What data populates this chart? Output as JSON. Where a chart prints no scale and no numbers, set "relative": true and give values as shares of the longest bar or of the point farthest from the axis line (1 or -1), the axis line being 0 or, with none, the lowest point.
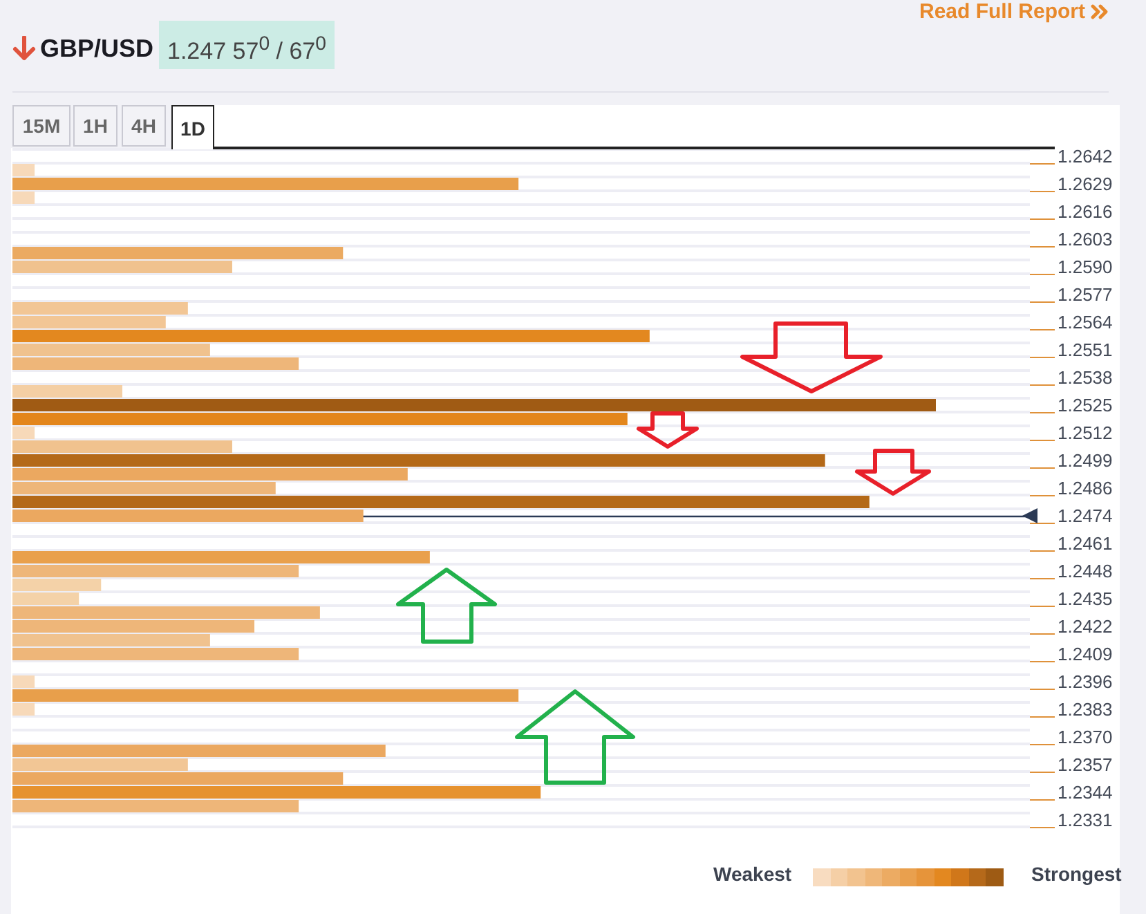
{
  "chart_data": {
    "type": "bar",
    "orientation": "horizontal",
    "relative": true,
    "title": "GBP/USD",
    "subtitle": "1.247 57$^{0}$ / 67$^{0}$",
    "categories": [
      "1.2642",
      null,
      "1.2629",
      null,
      "1.2616",
      null,
      "1.2603",
      null,
      "1.2590",
      null,
      "1.2577",
      null,
      "1.2564",
      null,
      "1.2551",
      null,
      "1.2538",
      null,
      "1.2525",
      null,
      "1.2512",
      null,
      "1.2499",
      null,
      "1.2486",
      null,
      "1.2474",
      null,
      "1.2461",
      null,
      "1.2448",
      null,
      "1.2435",
      null,
      "1.2422",
      null,
      "1.2409",
      null,
      "1.2396",
      null,
      "1.2383",
      null,
      "1.2370",
      null,
      "1.2357",
      null,
      "1.2344",
      null,
      "1.2331"
    ],
    "values": [
      null,
      0.024,
      0.548,
      0.024,
      null,
      null,
      null,
      0.358,
      0.238,
      null,
      null,
      0.19,
      0.166,
      0.69,
      0.214,
      0.31,
      null,
      0.119,
      1,
      0.666,
      0.024,
      0.238,
      0.88,
      0.428,
      0.285,
      0.928,
      0.38,
      null,
      null,
      0.452,
      0.31,
      0.096,
      0.072,
      0.333,
      0.262,
      0.214,
      0.31,
      null,
      0.024,
      0.548,
      0.024,
      null,
      null,
      0.404,
      0.19,
      0.358,
      0.572,
      0.31,
      null
    ],
    "colors": [
      null,
      "#f7d9b9",
      "#e89f4b",
      "#f7d9b9",
      null,
      null,
      null,
      "#ebaa61",
      "#f0c28e",
      null,
      null,
      "#f2c695",
      "#f2c695",
      "#e3881f",
      "#f0c28e",
      "#eeb679",
      null,
      "#f4cfa4",
      "#a05b14",
      "#e3861c",
      "#f7d9b9",
      "#f0c28e",
      "#b46918",
      "#eba860",
      "#eeb679",
      "#b46918",
      "#eba860",
      null,
      null,
      "#e9a04c",
      "#eeb679",
      "#f4d2a8",
      "#f4d2a8",
      "#eeb679",
      "#eeb679",
      "#f0c28e",
      "#eeb679",
      null,
      "#f7d9b9",
      "#e89f4b",
      "#f7d9b9",
      null,
      null,
      "#eba860",
      "#f2c695",
      "#eba860",
      "#e6922f",
      "#eeb679",
      null
    ],
    "ref_lines": [
      {
        "axis": "y",
        "value": "1.2474",
        "color": "#2b3a55"
      }
    ],
    "grid": "y",
    "annotations": [
      "Read Full Report",
      "15M",
      "1H",
      "4H",
      "1D",
      "Weakest",
      "Strongest"
    ]
  }
}
